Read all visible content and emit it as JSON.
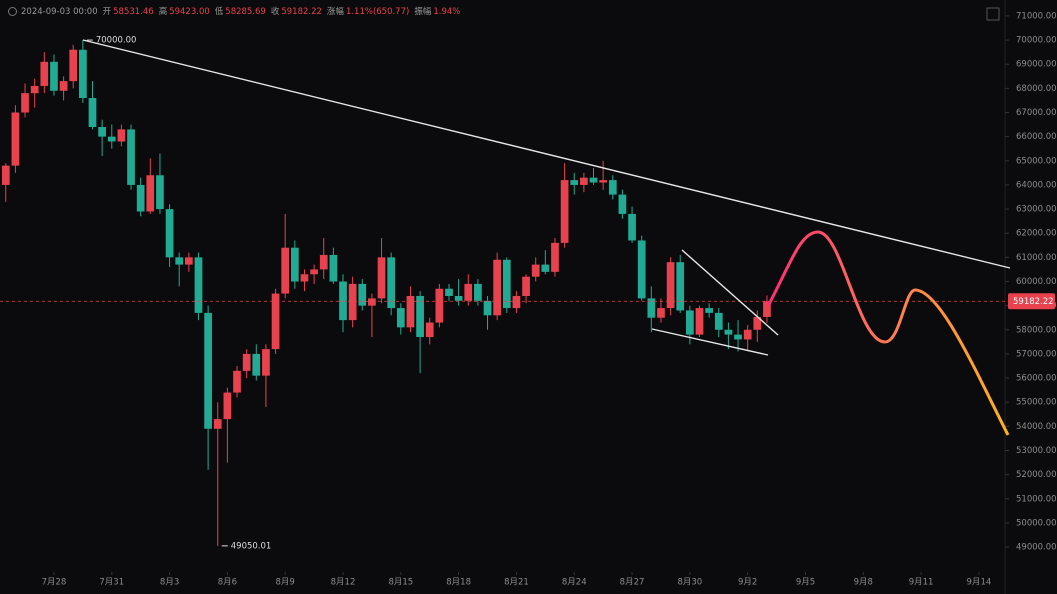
{
  "header": {
    "time": "2024-09-03 00:00",
    "info": [
      {
        "label": "开",
        "value": "58531.46"
      },
      {
        "label": "高",
        "value": "59423.00"
      },
      {
        "label": "低",
        "value": "58285.69"
      },
      {
        "label": "收",
        "value": "59182.22"
      },
      {
        "label": "涨幅",
        "value": "1.11%(650.77)"
      },
      {
        "label": "振幅",
        "value": "1.94%"
      }
    ]
  },
  "chart_data": {
    "type": "candlestick",
    "categories": [
      null,
      null,
      null,
      null,
      null,
      null,
      null,
      null,
      null,
      null,
      null,
      null,
      null,
      null,
      null,
      null,
      null,
      null,
      null,
      null,
      null,
      null,
      null,
      null,
      null,
      null,
      null,
      null,
      null,
      null,
      null,
      null,
      null,
      null,
      null,
      null,
      null,
      null,
      null,
      null,
      null,
      null,
      null,
      null,
      null,
      null,
      null,
      null,
      null,
      null,
      null,
      null,
      null,
      null,
      null,
      null,
      null,
      null,
      null,
      null,
      null,
      null,
      null,
      null,
      null,
      null,
      null,
      null,
      null,
      null,
      null,
      null,
      null,
      null,
      null,
      null,
      null,
      null,
      null,
      null
    ],
    "open": [
      64000,
      64800,
      67000,
      67800,
      68100,
      69100,
      67900,
      68300,
      69600,
      67600,
      66400,
      66000,
      65800,
      66300,
      64000,
      62900,
      64400,
      63000,
      61000,
      60700,
      61000,
      58700,
      53900,
      54300,
      55400,
      56300,
      57000,
      56100,
      57200,
      59500,
      61400,
      60000,
      60300,
      60500,
      61100,
      60000,
      58400,
      59900,
      59000,
      59300,
      61000,
      58900,
      58100,
      59400,
      57700,
      58300,
      59700,
      59400,
      59200,
      59900,
      59200,
      58600,
      60900,
      58900,
      59400,
      60200,
      60700,
      60400,
      61600,
      64200,
      64000,
      64300,
      64100,
      64200,
      63600,
      62800,
      61700,
      59300,
      58500,
      58900,
      60800,
      58800,
      57800,
      58900,
      58700,
      58000,
      57800,
      57600,
      58000,
      58531.46
    ],
    "high": [
      64900,
      67300,
      68200,
      68400,
      69500,
      69400,
      68500,
      69800,
      70000,
      68300,
      66700,
      66500,
      66500,
      66500,
      64300,
      65100,
      65300,
      63200,
      61200,
      61200,
      61200,
      59000,
      55000,
      55600,
      56500,
      57200,
      57400,
      57400,
      59700,
      62800,
      61700,
      60500,
      60700,
      61800,
      61400,
      60300,
      60200,
      60100,
      59500,
      61800,
      61200,
      59100,
      59800,
      59600,
      58500,
      59900,
      59900,
      60100,
      60300,
      60100,
      59400,
      61200,
      61000,
      59600,
      60300,
      61000,
      61300,
      61800,
      64900,
      64500,
      64500,
      64700,
      65000,
      64400,
      63800,
      63100,
      61900,
      59800,
      59300,
      61000,
      61100,
      59000,
      59000,
      59100,
      58900,
      58300,
      58400,
      58200,
      58800,
      59423
    ],
    "low": [
      63300,
      64500,
      66800,
      67200,
      67800,
      67700,
      67500,
      68000,
      67400,
      66300,
      65200,
      65500,
      65600,
      63800,
      62700,
      62800,
      62800,
      60600,
      59800,
      60400,
      58400,
      52200,
      49050.01,
      52500,
      55200,
      56000,
      55900,
      54800,
      57000,
      59300,
      59700,
      59600,
      59900,
      60100,
      59900,
      57900,
      58100,
      58800,
      57700,
      59100,
      58600,
      57800,
      57900,
      56200,
      57400,
      58100,
      59200,
      59000,
      59000,
      59000,
      58000,
      58400,
      58700,
      58700,
      59100,
      60000,
      60300,
      60200,
      61400,
      63600,
      63700,
      64000,
      63800,
      63400,
      62600,
      61600,
      59200,
      57900,
      58300,
      58600,
      58700,
      57400,
      57700,
      58500,
      57700,
      57200,
      57100,
      57100,
      57500,
      58285.69
    ],
    "close": [
      64800,
      67000,
      67800,
      68100,
      69100,
      67900,
      68300,
      69600,
      67600,
      66400,
      66000,
      65800,
      66300,
      64000,
      62900,
      64400,
      63000,
      61000,
      60700,
      61000,
      58700,
      53900,
      54300,
      55400,
      56300,
      57000,
      56100,
      57200,
      59500,
      61400,
      60000,
      60300,
      60500,
      61100,
      60000,
      58400,
      59900,
      59000,
      59300,
      61000,
      58900,
      58100,
      59400,
      57700,
      58300,
      59700,
      59400,
      59200,
      59900,
      59200,
      58600,
      60900,
      58900,
      59400,
      60200,
      60700,
      60400,
      61600,
      64200,
      64000,
      64300,
      64100,
      64200,
      63600,
      62800,
      61700,
      59300,
      58500,
      58900,
      60800,
      58800,
      57800,
      58900,
      58700,
      58000,
      57800,
      57600,
      58000,
      58531.46,
      59182.22
    ],
    "up_color": "#e8424f",
    "down_color": "#22ab94",
    "xlim": [
      -0.6,
      103.5
    ],
    "xticks": [
      {
        "value": 5,
        "label": "7月28"
      },
      {
        "value": 11,
        "label": "7月31"
      },
      {
        "value": 17,
        "label": "8月3"
      },
      {
        "value": 23,
        "label": "8月6"
      },
      {
        "value": 29,
        "label": "8月9"
      },
      {
        "value": 35,
        "label": "8月12"
      },
      {
        "value": 41,
        "label": "8月15"
      },
      {
        "value": 47,
        "label": "8月18"
      },
      {
        "value": 53,
        "label": "8月21"
      },
      {
        "value": 59,
        "label": "8月24"
      },
      {
        "value": 65,
        "label": "8月27"
      },
      {
        "value": 71,
        "label": "8月30"
      },
      {
        "value": 77,
        "label": "9月2"
      },
      {
        "value": 83,
        "label": "9月5"
      },
      {
        "value": 89,
        "label": "9月8"
      },
      {
        "value": 95,
        "label": "9月11"
      },
      {
        "value": 101,
        "label": "9月14"
      }
    ],
    "ylim": [
      48050,
      71660
    ],
    "yticks": [
      {
        "value": 49000,
        "label": "49000.00"
      },
      {
        "value": 50000,
        "label": "50000.00"
      },
      {
        "value": 51000,
        "label": "51000.00"
      },
      {
        "value": 52000,
        "label": "52000.00"
      },
      {
        "value": 53000,
        "label": "53000.00"
      },
      {
        "value": 54000,
        "label": "54000.00"
      },
      {
        "value": 55000,
        "label": "55000.00"
      },
      {
        "value": 56000,
        "label": "56000.00"
      },
      {
        "value": 57000,
        "label": "57000.00"
      },
      {
        "value": 58000,
        "label": "58000.00"
      },
      {
        "value": 59000,
        "label": "59000.00"
      },
      {
        "value": 60000,
        "label": "60000.00"
      },
      {
        "value": 61000,
        "label": "61000.00"
      },
      {
        "value": 62000,
        "label": "62000.00"
      },
      {
        "value": 63000,
        "label": "63000.00"
      },
      {
        "value": 64000,
        "label": "64000.00"
      },
      {
        "value": 65000,
        "label": "65000.00"
      },
      {
        "value": 66000,
        "label": "66000.00"
      },
      {
        "value": 67000,
        "label": "67000.00"
      },
      {
        "value": 68000,
        "label": "68000.00"
      },
      {
        "value": 69000,
        "label": "69000.00"
      },
      {
        "value": 70000,
        "label": "70000.00"
      },
      {
        "value": 71000,
        "label": "71000.00"
      }
    ],
    "max_label": "70000.00",
    "min_label": "49050.01",
    "last_price_label": "59182.22"
  }
}
